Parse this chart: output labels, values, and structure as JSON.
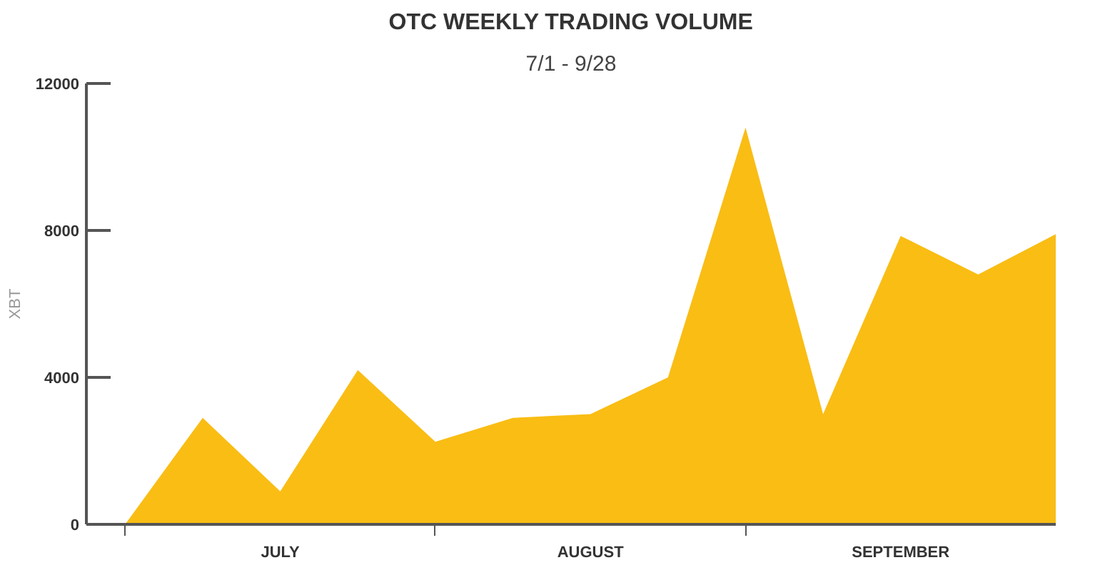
{
  "chart_data": {
    "type": "area",
    "title": "OTC WEEKLY TRADING VOLUME",
    "subtitle": "7/1 - 9/28",
    "ylabel": "XBT",
    "categories": [
      null,
      null,
      "JULY",
      null,
      null,
      null,
      "AUGUST",
      null,
      null,
      null,
      "SEPTEMBER",
      null,
      null
    ],
    "series": [
      {
        "color": "#f9bd14",
        "values": [
          0,
          2900,
          900,
          4200,
          2250,
          2900,
          3000,
          4000,
          10800,
          3000,
          7850,
          6800,
          7900
        ]
      }
    ],
    "ylim": [
      0,
      12000
    ],
    "yticks": [
      0,
      4000,
      8000,
      12000
    ],
    "grid": false
  }
}
